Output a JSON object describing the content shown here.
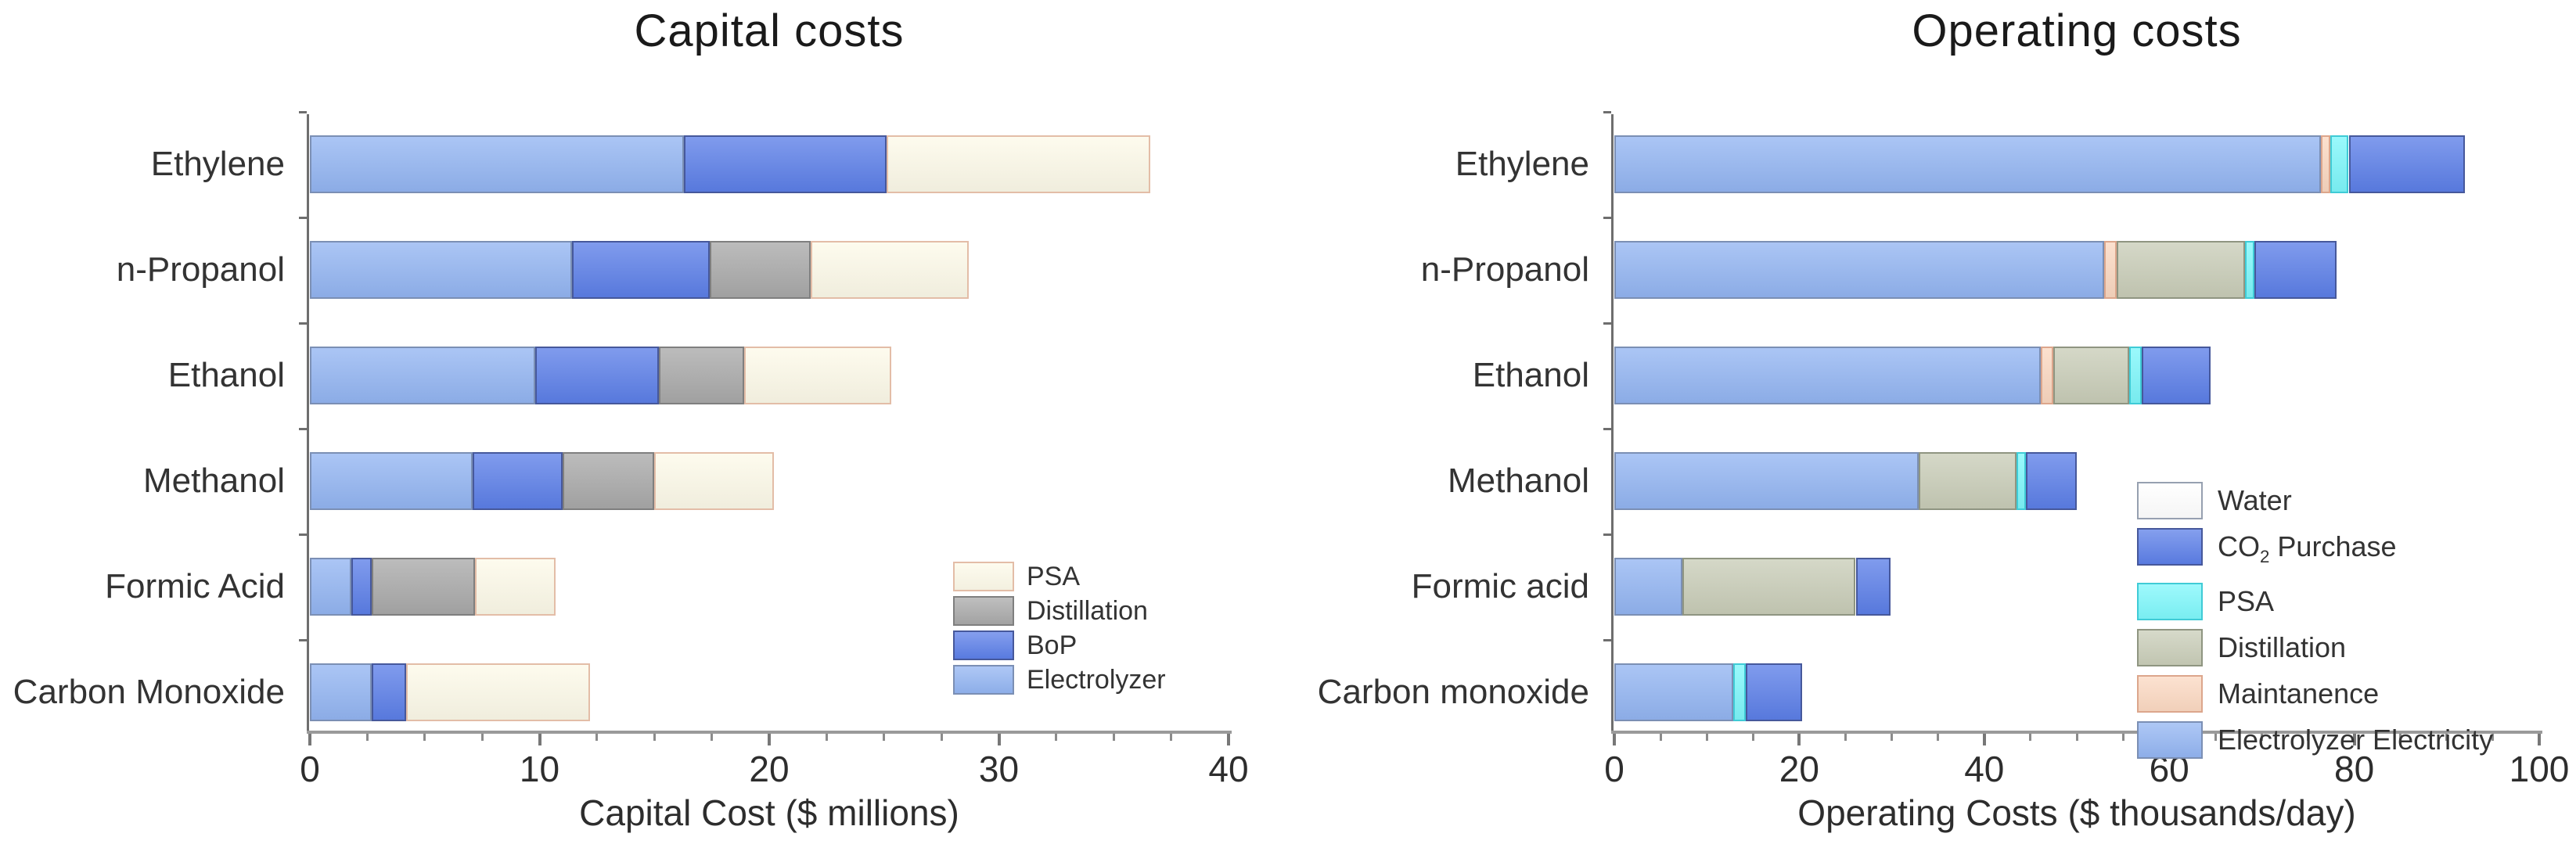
{
  "figure": {
    "background": "#ffffff",
    "text_color": "#2d2d2d",
    "axis_color": "#9a9a9a"
  },
  "chart_data": {
    "type": "bar",
    "orientation": "horizontal-stacked",
    "charts": [
      {
        "title": "Capital costs",
        "xlabel": "Capital Cost ($ millions)",
        "xlim": [
          0,
          40
        ],
        "xticks": [
          0,
          10,
          20,
          30,
          40
        ],
        "minor_tick_step": 2.5,
        "grid": false,
        "legend_position": "lower-right-inside",
        "categories": [
          "Ethylene",
          "n-Propanol",
          "Ethanol",
          "Methanol",
          "Formic Acid",
          "Carbon Monoxide"
        ],
        "series": [
          {
            "name": "Electrolyzer",
            "fill": "#93b5f2",
            "border": "#7b8fb4",
            "values": [
              16.3,
              11.4,
              9.8,
              7.1,
              1.8,
              2.7
            ]
          },
          {
            "name": "BoP",
            "fill": "#5c7fe8",
            "border": "#46589b",
            "values": [
              8.8,
              6.0,
              5.4,
              3.9,
              0.9,
              1.5
            ]
          },
          {
            "name": "Distillation",
            "fill": "#a9a9a9",
            "border": "#7f7f7f",
            "values": [
              0,
              4.4,
              3.7,
              4.0,
              4.5,
              0
            ]
          },
          {
            "name": "PSA",
            "fill": "#fdfae9",
            "border": "#e3bda7",
            "values": [
              11.5,
              6.9,
              6.4,
              5.2,
              3.5,
              8.0
            ]
          }
        ]
      },
      {
        "title": "Operating costs",
        "xlabel": "Operating Costs ($ thousands/day)",
        "xlim": [
          0,
          100
        ],
        "xticks": [
          0,
          20,
          40,
          60,
          80,
          100
        ],
        "minor_tick_step": 5,
        "grid": false,
        "legend_position": "lower-right-inside",
        "categories": [
          "Ethylene",
          "n-Propanol",
          "Ethanol",
          "Methanol",
          "Formic acid",
          "Carbon monoxide"
        ],
        "series": [
          {
            "name": "Electrolyzer Electricity",
            "fill": "#93b5f2",
            "border": "#7b8fb4",
            "values": [
              76.4,
              53.0,
              46.1,
              32.9,
              7.4,
              12.9
            ]
          },
          {
            "name": "Maintanence",
            "fill": "#fbd8c1",
            "border": "#dca68c",
            "values": [
              1.0,
              1.3,
              1.4,
              0,
              0,
              0
            ]
          },
          {
            "name": "Distillation",
            "fill": "#c9cdb8",
            "border": "#8f9581",
            "values": [
              0,
              13.9,
              8.2,
              10.6,
              18.7,
              0
            ]
          },
          {
            "name": "PSA",
            "fill": "#7ef7fb",
            "border": "#3fcbd6",
            "values": [
              2.0,
              1.0,
              1.3,
              1.0,
              0,
              1.3
            ]
          },
          {
            "name": "CO2 Purchase",
            "name_parts": {
              "pre": "CO",
              "sub": "2",
              "post": " Purchase"
            },
            "fill": "#5c7fe8",
            "border": "#46589b",
            "values": [
              12.6,
              8.9,
              7.5,
              5.5,
              3.8,
              6.1
            ]
          },
          {
            "name": "Water",
            "fill": "#ffffff",
            "border": "#96a0b0",
            "values": [
              0,
              0,
              0,
              0,
              0,
              0
            ]
          }
        ]
      }
    ]
  }
}
